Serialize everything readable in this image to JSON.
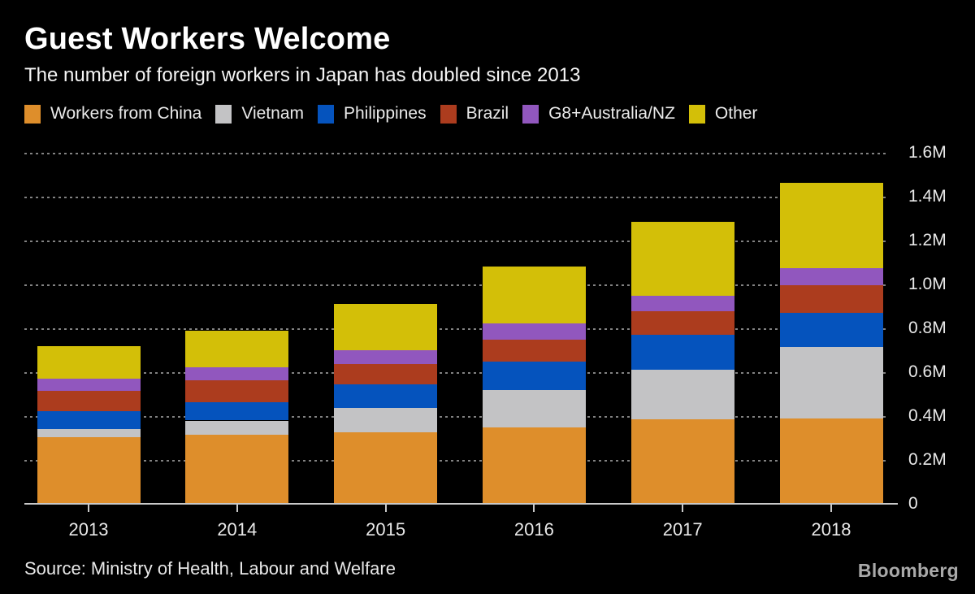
{
  "header": {
    "title": "Guest Workers Welcome",
    "subtitle": "The number of foreign workers in Japan has doubled since 2013"
  },
  "chart_data": {
    "type": "bar",
    "stacked": true,
    "title": "Guest Workers Welcome",
    "subtitle": "The number of foreign workers in Japan has doubled since 2013",
    "categories": [
      "2013",
      "2014",
      "2015",
      "2016",
      "2017",
      "2018"
    ],
    "series": [
      {
        "name": "Workers from China",
        "color": "#de8e2b",
        "values": [
          0.301,
          0.313,
          0.324,
          0.346,
          0.38,
          0.387
        ]
      },
      {
        "name": "Vietnam",
        "color": "#c3c3c5",
        "values": [
          0.037,
          0.063,
          0.108,
          0.168,
          0.227,
          0.324
        ]
      },
      {
        "name": "Philippines",
        "color": "#0553bd",
        "values": [
          0.082,
          0.085,
          0.108,
          0.13,
          0.16,
          0.157
        ]
      },
      {
        "name": "Brazil",
        "color": "#ac3c1e",
        "values": [
          0.093,
          0.097,
          0.093,
          0.1,
          0.107,
          0.126
        ]
      },
      {
        "name": "G8+Australia/NZ",
        "color": "#9157be",
        "values": [
          0.052,
          0.06,
          0.063,
          0.075,
          0.071,
          0.078
        ]
      },
      {
        "name": "Other",
        "color": "#d3bf08",
        "values": [
          0.149,
          0.167,
          0.212,
          0.26,
          0.335,
          0.387
        ]
      }
    ],
    "units": "millions of workers",
    "xlabel": "",
    "ylabel": "",
    "ylim": [
      0,
      1.6
    ],
    "ytick_values": [
      0,
      0.2,
      0.4,
      0.6,
      0.8,
      1.0,
      1.2,
      1.4,
      1.6
    ],
    "ytick_labels": [
      "0",
      "0.2M",
      "0.4M",
      "0.6M",
      "0.8M",
      "1.0M",
      "1.2M",
      "1.4M",
      "1.6M"
    ],
    "grid": "horizontal dotted",
    "legend_position": "top"
  },
  "footer": {
    "source": "Source: Ministry of Health, Labour and Welfare",
    "brand": "Bloomberg"
  },
  "colors": {
    "background": "#000000",
    "title_text": "#ffffff",
    "axis_text": "#e8e8e8",
    "gridline": "#828282",
    "axis_line": "#c9c9c9",
    "brand_text": "#a9a9a9"
  }
}
